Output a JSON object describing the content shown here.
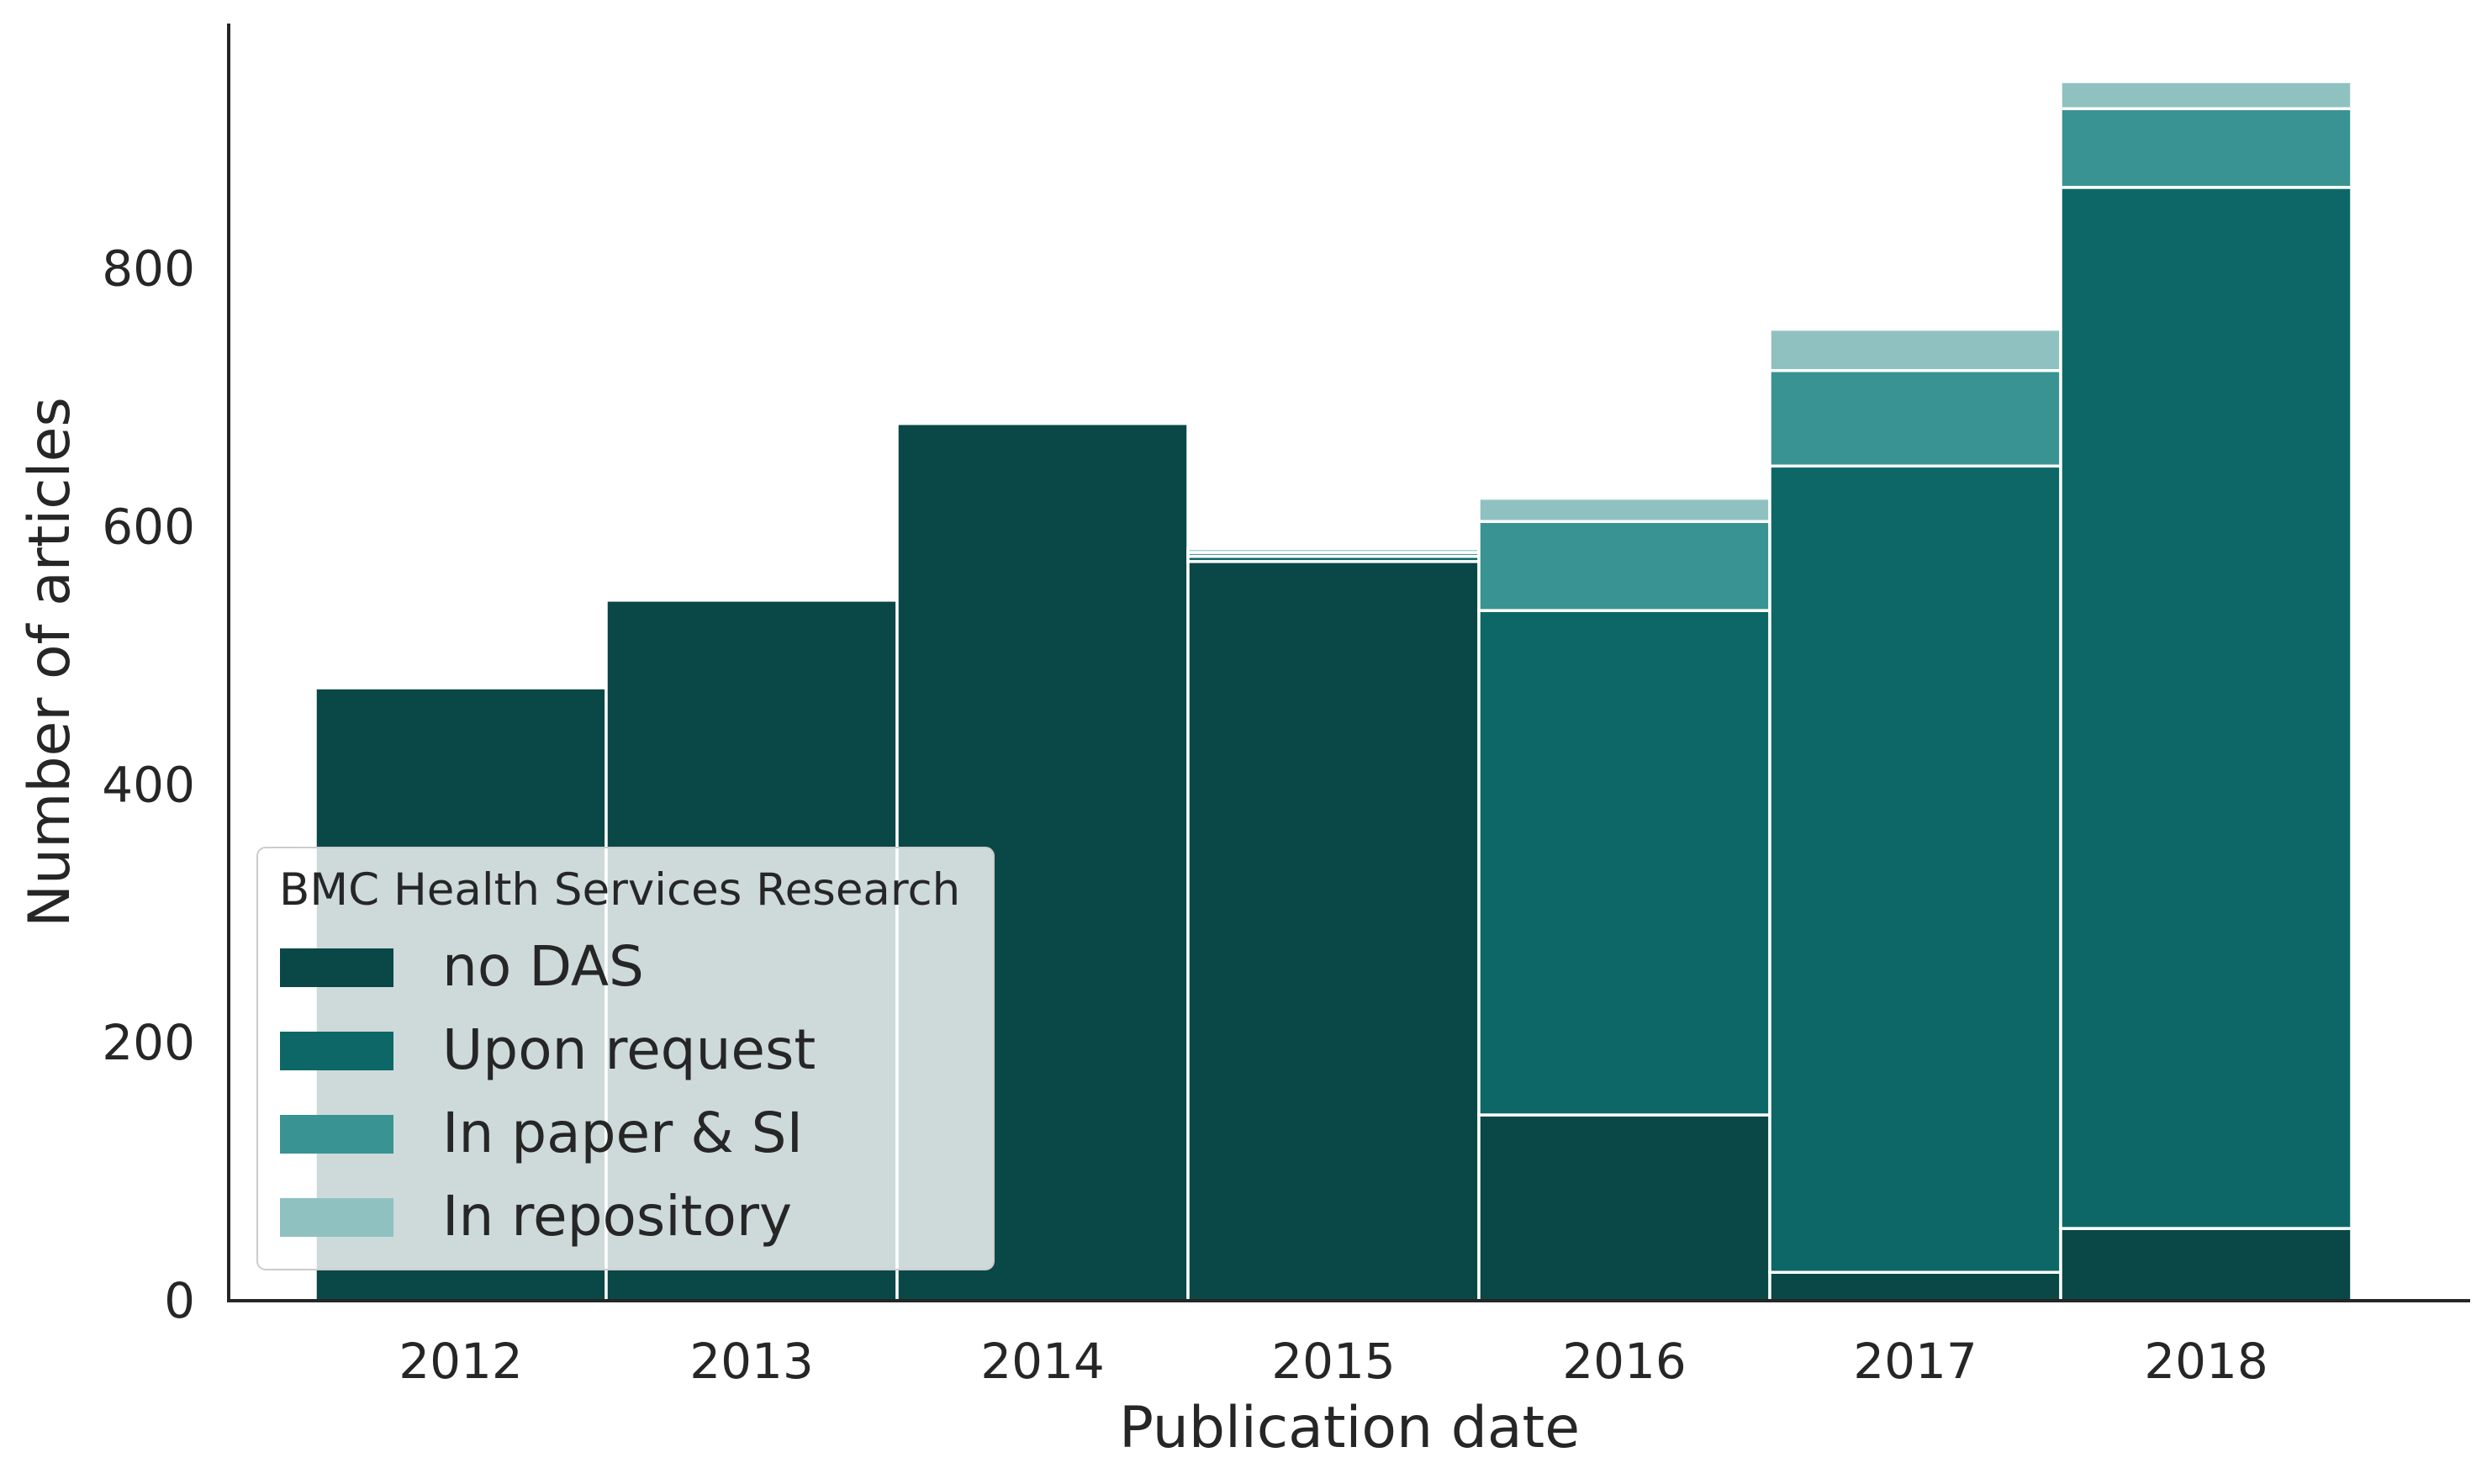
{
  "chart_data": {
    "type": "bar",
    "stacked": true,
    "title": "",
    "xlabel": "Publication date",
    "ylabel": "Number of articles",
    "categories": [
      "2012",
      "2013",
      "2014",
      "2015",
      "2016",
      "2017",
      "2018"
    ],
    "yticks": [
      0,
      200,
      400,
      600,
      800
    ],
    "ylim": [
      0,
      990
    ],
    "grid": false,
    "legend": {
      "title": "BMC Health Services Research",
      "position": "lower-left"
    },
    "series": [
      {
        "name": "no DAS",
        "color": "#0a4747",
        "values": [
          475,
          543,
          680,
          573,
          144,
          22,
          56
        ]
      },
      {
        "name": "Upon request",
        "color": "#0e6767",
        "values": [
          0,
          0,
          2,
          4,
          391,
          625,
          807
        ]
      },
      {
        "name": "In paper & SI",
        "color": "#3a9393",
        "values": [
          0,
          0,
          1,
          3,
          69,
          74,
          61
        ]
      },
      {
        "name": "In repository",
        "color": "#8fc1c1",
        "values": [
          0,
          0,
          1,
          3,
          18,
          32,
          21
        ]
      }
    ]
  }
}
